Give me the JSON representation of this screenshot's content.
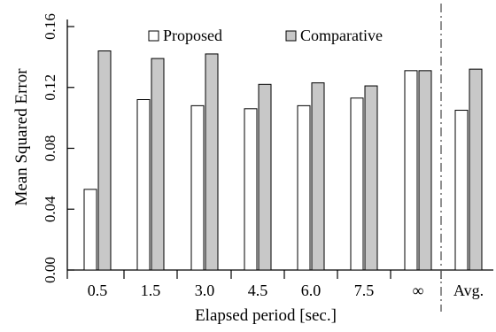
{
  "chart_data": {
    "type": "bar",
    "title": "",
    "xlabel": "Elapsed period [sec.]",
    "ylabel": "Mean Squared Error",
    "categories": [
      "0.5",
      "1.5",
      "3.0",
      "4.5",
      "6.0",
      "7.5",
      "∞",
      "Avg."
    ],
    "series": [
      {
        "name": "Proposed",
        "color": "#ffffff",
        "values": [
          0.053,
          0.112,
          0.108,
          0.106,
          0.108,
          0.113,
          0.131,
          0.105
        ]
      },
      {
        "name": "Comparative",
        "color": "#c8c8c8",
        "values": [
          0.144,
          0.139,
          0.142,
          0.122,
          0.123,
          0.121,
          0.131,
          0.132
        ]
      }
    ],
    "ylim": [
      0,
      0.16
    ],
    "yticks": [
      "0.00",
      "0.04",
      "0.08",
      "0.12",
      "0.16"
    ],
    "grid": false,
    "legend": "top-center, horizontal",
    "separator": "dash-dot vertical line before Avg."
  }
}
